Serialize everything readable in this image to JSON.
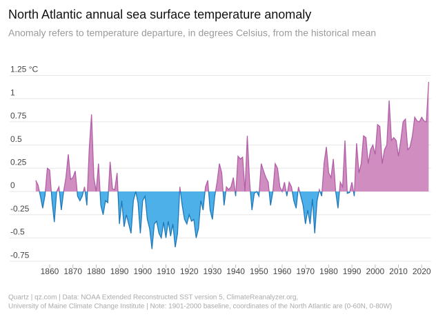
{
  "chart_data": {
    "type": "area",
    "title": "North Atlantic annual sea surface temperature anomaly",
    "subtitle": "Anomaly refers to temperature departure, in degrees Celsius, from the historical mean",
    "source": "Quartz | qz.com | Data: NOAA Extended Reconstructed SST version 5, ClimateReanalyzer.org,",
    "source_line2": "University of Maine Climate Change Institute | Note: 1901-2000 baseline, coordinates of the North Atlantic are (0-60N, 0-80W)",
    "x": [
      1854,
      1855,
      1856,
      1857,
      1858,
      1859,
      1860,
      1861,
      1862,
      1863,
      1864,
      1865,
      1866,
      1867,
      1868,
      1869,
      1870,
      1871,
      1872,
      1873,
      1874,
      1875,
      1876,
      1877,
      1878,
      1879,
      1880,
      1881,
      1882,
      1883,
      1884,
      1885,
      1886,
      1887,
      1888,
      1889,
      1890,
      1891,
      1892,
      1893,
      1894,
      1895,
      1896,
      1897,
      1898,
      1899,
      1900,
      1901,
      1902,
      1903,
      1904,
      1905,
      1906,
      1907,
      1908,
      1909,
      1910,
      1911,
      1912,
      1913,
      1914,
      1915,
      1916,
      1917,
      1918,
      1919,
      1920,
      1921,
      1922,
      1923,
      1924,
      1925,
      1926,
      1927,
      1928,
      1929,
      1930,
      1931,
      1932,
      1933,
      1934,
      1935,
      1936,
      1937,
      1938,
      1939,
      1940,
      1941,
      1942,
      1943,
      1944,
      1945,
      1946,
      1947,
      1948,
      1949,
      1950,
      1951,
      1952,
      1953,
      1954,
      1955,
      1956,
      1957,
      1958,
      1959,
      1960,
      1961,
      1962,
      1963,
      1964,
      1965,
      1966,
      1967,
      1968,
      1969,
      1970,
      1971,
      1972,
      1973,
      1974,
      1975,
      1976,
      1977,
      1978,
      1979,
      1980,
      1981,
      1982,
      1983,
      1984,
      1985,
      1986,
      1987,
      1988,
      1989,
      1990,
      1991,
      1992,
      1993,
      1994,
      1995,
      1996,
      1997,
      1998,
      1999,
      2000,
      2001,
      2002,
      2003,
      2004,
      2005,
      2006,
      2007,
      2008,
      2009,
      2010,
      2011,
      2012,
      2013,
      2014,
      2015,
      2016,
      2017,
      2018,
      2019,
      2020,
      2021,
      2022,
      2023
    ],
    "values": [
      0.12,
      0.07,
      -0.05,
      -0.18,
      -0.04,
      0.25,
      0.23,
      -0.1,
      -0.33,
      0.0,
      0.05,
      -0.2,
      0.0,
      0.15,
      0.4,
      0.13,
      0.15,
      0.22,
      -0.05,
      -0.1,
      -0.05,
      0.05,
      -0.15,
      0.45,
      0.83,
      0.15,
      0.0,
      0.3,
      -0.15,
      -0.25,
      -0.1,
      -0.12,
      0.32,
      0.03,
      0.02,
      0.2,
      -0.35,
      -0.1,
      -0.38,
      -0.25,
      -0.35,
      -0.45,
      -0.1,
      0.0,
      -0.12,
      -0.45,
      -0.1,
      -0.05,
      -0.3,
      -0.4,
      -0.62,
      -0.35,
      -0.32,
      -0.45,
      -0.5,
      -0.33,
      -0.5,
      -0.32,
      -0.48,
      -0.35,
      -0.6,
      -0.45,
      0.05,
      -0.15,
      -0.3,
      -0.35,
      -0.25,
      -0.32,
      -0.3,
      -0.5,
      -0.4,
      -0.1,
      -0.2,
      0.05,
      0.12,
      -0.2,
      -0.3,
      -0.05,
      0.1,
      0.3,
      0.2,
      -0.15,
      0.05,
      0.02,
      0.05,
      0.15,
      -0.05,
      0.38,
      0.35,
      0.37,
      0.0,
      0.6,
      0.1,
      -0.2,
      -0.02,
      0.0,
      -0.05,
      0.3,
      0.22,
      0.15,
      0.1,
      -0.15,
      0.0,
      0.3,
      0.25,
      0.05,
      0.0,
      0.1,
      -0.05,
      0.1,
      0.05,
      -0.1,
      -0.18,
      0.05,
      -0.05,
      -0.15,
      -0.35,
      -0.2,
      -0.35,
      -0.08,
      -0.45,
      -0.1,
      0.02,
      -0.05,
      0.3,
      0.48,
      0.2,
      0.15,
      0.35,
      0.0,
      -0.18,
      0.1,
      0.05,
      0.55,
      -0.02,
      -0.01,
      0.1,
      -0.05,
      0.52,
      0.2,
      0.3,
      0.6,
      0.58,
      0.3,
      0.45,
      0.5,
      0.4,
      0.72,
      0.7,
      0.3,
      0.45,
      0.5,
      0.98,
      0.55,
      0.58,
      0.55,
      0.38,
      0.55,
      0.75,
      0.78,
      0.45,
      0.48,
      0.6,
      0.8,
      0.76,
      0.75,
      0.8,
      0.76,
      0.75,
      1.18
    ],
    "color_positive": "#d08dc0",
    "line_positive": "#b25ea8",
    "color_negative": "#4db0e8",
    "line_negative": "#1f78b8",
    "xlim": [
      1853,
      2024
    ],
    "xticks": [
      1860,
      1870,
      1880,
      1890,
      1900,
      1910,
      1920,
      1930,
      1940,
      1950,
      1960,
      1970,
      1980,
      1990,
      2000,
      2010,
      2020
    ],
    "ylim": [
      -0.8,
      1.4
    ],
    "yticks": [
      {
        "value": 1.25,
        "label": "1.25 °C"
      },
      1,
      0.75,
      0.5,
      0.25,
      0,
      -0.25,
      -0.5,
      -0.75
    ],
    "grid": true
  }
}
